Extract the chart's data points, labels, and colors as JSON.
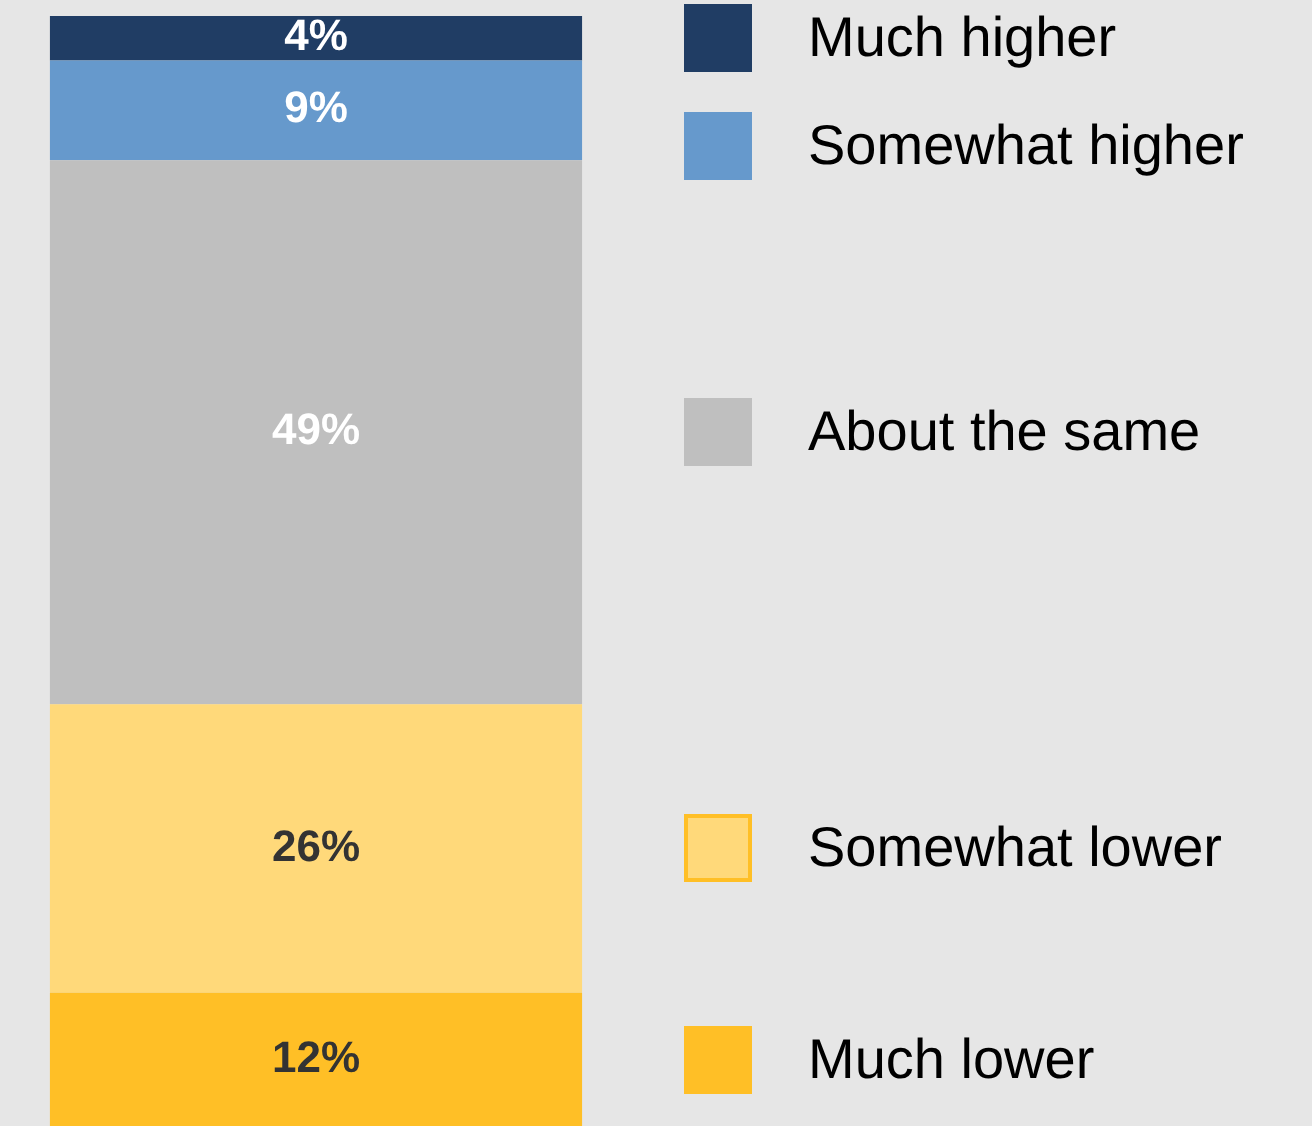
{
  "chart_data": {
    "type": "bar",
    "stacked": true,
    "categories": [
      null
    ],
    "legend": "right",
    "series": [
      {
        "name": "Much lower",
        "color": "#ffbf26",
        "values": [
          12
        ],
        "value_labels": [
          "12%"
        ]
      },
      {
        "name": "Somewhat lower",
        "color": "#ffd97a",
        "values": [
          26
        ],
        "value_labels": [
          "26%"
        ]
      },
      {
        "name": "About the same",
        "color": "#bfbfbf",
        "values": [
          49
        ],
        "value_labels": [
          "49%"
        ]
      },
      {
        "name": "Somewhat higher",
        "color": "#6699cc",
        "values": [
          9
        ],
        "value_labels": [
          "9%"
        ]
      },
      {
        "name": "Much higher",
        "color": "#203d64",
        "values": [
          4
        ],
        "value_labels": [
          "4%"
        ]
      }
    ]
  }
}
